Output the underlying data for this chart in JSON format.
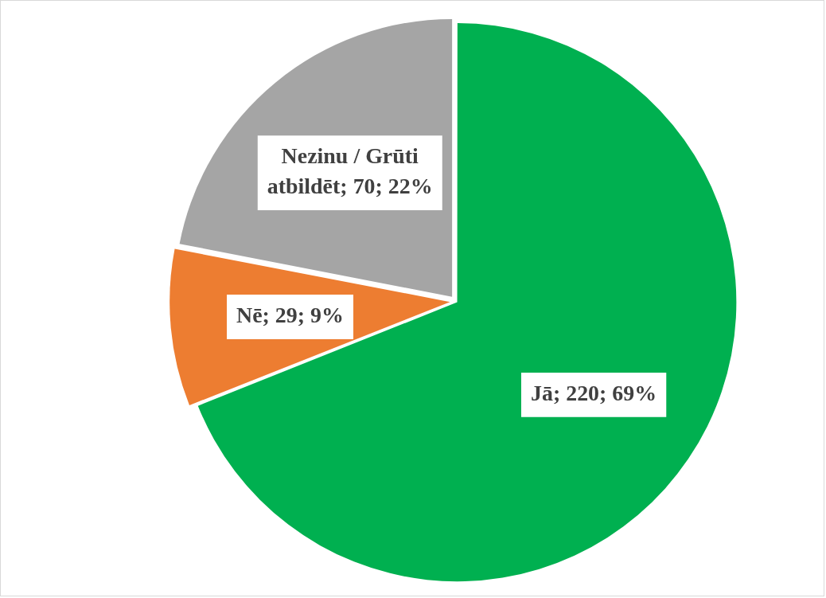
{
  "chart_data": {
    "type": "pie",
    "categories": [
      "Jā",
      "Nē",
      "Nezinu / Grūti atbildēt"
    ],
    "values": [
      220,
      29,
      70
    ],
    "colors": [
      "#00b050",
      "#ed7d31",
      "#a5a5a5"
    ],
    "value_labels": [
      "; 220; 69%",
      "; 29; 9%",
      "; 70; 22%"
    ],
    "legend": false
  }
}
